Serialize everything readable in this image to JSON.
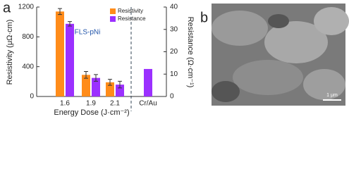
{
  "panel_labels": [
    "a",
    "b"
  ],
  "chart_data": {
    "type": "bar",
    "annotation": "FLS-pNi",
    "xlabel": "Energy Dose (J·cm⁻²)",
    "ylabel": "Resistivity (μΩ·cm)",
    "y2label": "Resistance (Ω·cm⁻¹)",
    "categories": [
      "1.6",
      "1.9",
      "2.1",
      "Cr/Au"
    ],
    "series": [
      {
        "name": "Resistivity",
        "color": "#ff8c1a",
        "values": [
          1140,
          290,
          190,
          null
        ],
        "errors": [
          40,
          45,
          40,
          null
        ]
      },
      {
        "name": "Resistance",
        "color": "#9b30ff",
        "axis": "y2",
        "values": [
          32.5,
          8.3,
          5.3,
          12.3
        ],
        "errors": [
          1,
          1.5,
          1.5,
          null
        ]
      }
    ],
    "ylim": [
      0,
      1200
    ],
    "yticks": [
      0,
      400,
      800,
      1200
    ],
    "y2lim": [
      0,
      40
    ],
    "y2ticks": [
      0,
      10,
      20,
      30,
      40
    ],
    "legend": "upper right"
  },
  "image": {
    "scale_bar": "1 μm"
  }
}
